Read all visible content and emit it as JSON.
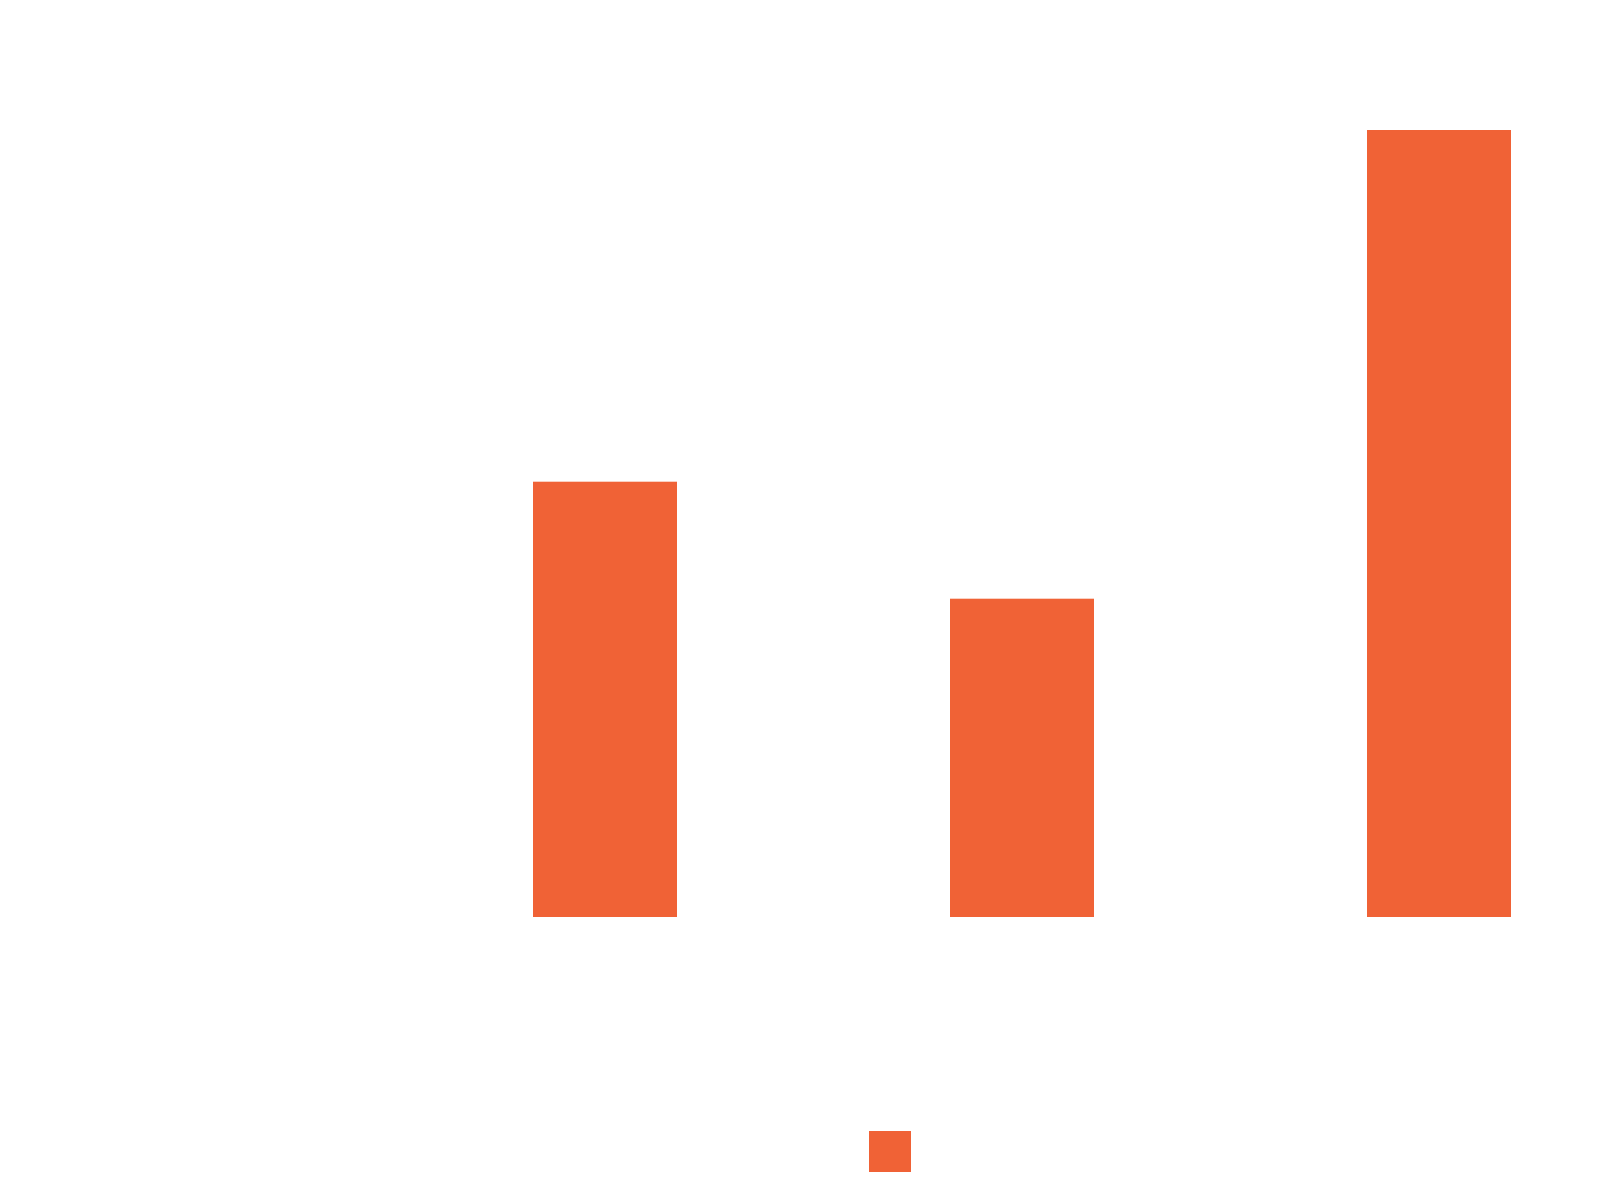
{
  "chart_data": {
    "type": "bar",
    "categories": [
      "",
      "",
      "",
      ""
    ],
    "series": [
      {
        "color": "#F06236",
        "values": [
          0,
          7.03,
          5.14,
          12.71
        ]
      }
    ],
    "ylim": [
      0,
      13
    ],
    "grid": false,
    "legend": {
      "placement": "bottom-center",
      "entries": [
        {
          "color": "#F06236"
        }
      ]
    }
  }
}
